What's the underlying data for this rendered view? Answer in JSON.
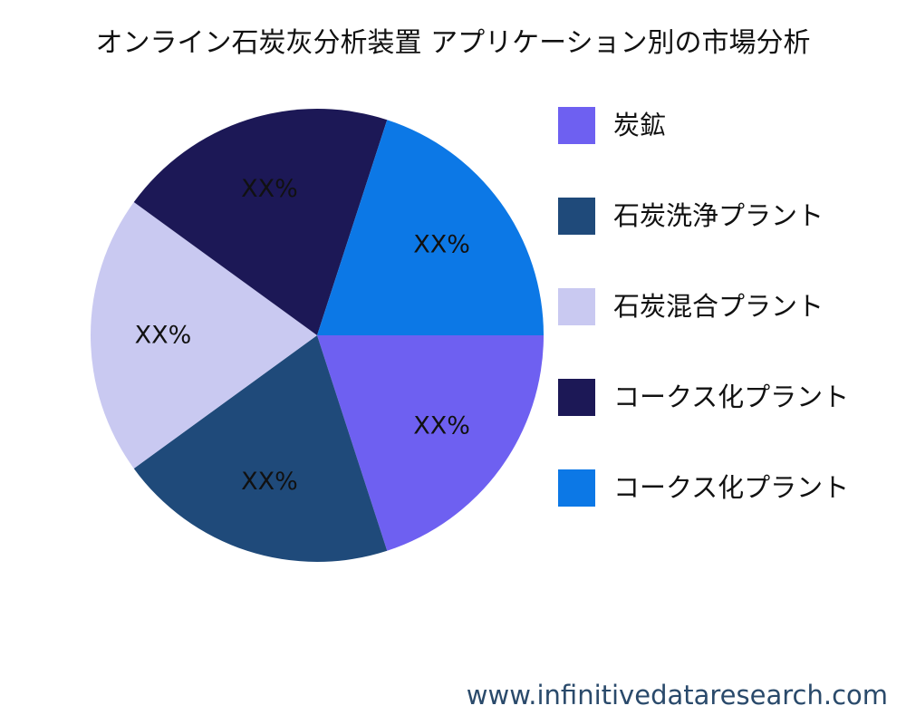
{
  "chart_data": {
    "type": "pie",
    "title": "オンライン石炭灰分析装置 アプリケーション別の市場分析",
    "slices": [
      {
        "label": "炭鉱",
        "value": 20,
        "display": "XX%",
        "color": "#6e60f1"
      },
      {
        "label": "石炭洗浄プラント",
        "value": 20,
        "display": "XX%",
        "color": "#1f4a7a"
      },
      {
        "label": "石炭混合プラント",
        "value": 20,
        "display": "XX%",
        "color": "#c9c9f1"
      },
      {
        "label": "コークス化プラント",
        "value": 20,
        "display": "XX%",
        "color": "#1c1856"
      },
      {
        "label": "コークス化プラント",
        "value": 20,
        "display": "XX%",
        "color": "#0c78e6"
      }
    ],
    "start_angle_deg": 0,
    "direction": "clockwise",
    "legend_position": "right"
  },
  "footer": {
    "url": "www.infinitivedataresearch.com"
  }
}
